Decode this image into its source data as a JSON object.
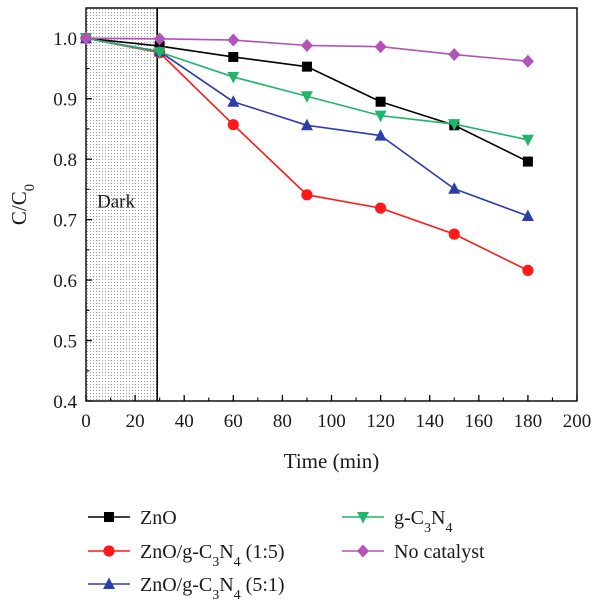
{
  "chart_data": {
    "type": "line",
    "xlabel": "Time (min)",
    "ylabel": {
      "main": "C/C",
      "sub": "0"
    },
    "xlim": [
      0,
      200
    ],
    "ylim": [
      0.4,
      1.05
    ],
    "xticks": [
      0,
      20,
      40,
      60,
      80,
      100,
      120,
      140,
      160,
      180,
      200
    ],
    "yticks": [
      0.4,
      0.5,
      0.6,
      0.7,
      0.8,
      0.9,
      1.0
    ],
    "xtick_labels": [
      "0",
      "20",
      "40",
      "60",
      "80",
      "100",
      "120",
      "140",
      "160",
      "180",
      "200"
    ],
    "ytick_labels": [
      "0.4",
      "0.5",
      "0.6",
      "0.7",
      "0.8",
      "0.9",
      "1.0"
    ],
    "grid": false,
    "legend_position": "bottom-outside",
    "annotations": [
      {
        "text": "Dark",
        "x_range": [
          0,
          29
        ],
        "fill": "dotted-hatch"
      }
    ],
    "x": [
      0,
      30,
      60,
      90,
      120,
      150,
      180
    ],
    "series": [
      {
        "name": "ZnO",
        "legend": [
          "ZnO"
        ],
        "marker": "square",
        "color": "#000000",
        "values": [
          1.0,
          0.987,
          0.969,
          0.953,
          0.895,
          0.856,
          0.796
        ]
      },
      {
        "name": "ZnO/g-C3N4 (1:5)",
        "legend": [
          "ZnO/g-C",
          "3",
          "N",
          "4",
          " (1:5)"
        ],
        "marker": "circle",
        "color": "#ff1a1a",
        "values": [
          1.0,
          0.976,
          0.857,
          0.741,
          0.719,
          0.676,
          0.616
        ]
      },
      {
        "name": "ZnO/g-C3N4 (5:1)",
        "legend": [
          "ZnO/g-C",
          "3",
          "N",
          "4",
          " (5:1)"
        ],
        "marker": "triangle-up",
        "color": "#2b3fa8",
        "values": [
          1.0,
          0.978,
          0.895,
          0.856,
          0.839,
          0.751,
          0.706
        ]
      },
      {
        "name": "g-C3N4",
        "legend": [
          "g-C",
          "3",
          "N",
          "4"
        ],
        "marker": "triangle-down",
        "color": "#1fb56a",
        "values": [
          1.0,
          0.977,
          0.936,
          0.904,
          0.872,
          0.858,
          0.832
        ]
      },
      {
        "name": "No catalyst",
        "legend": [
          "No catalyst"
        ],
        "marker": "diamond",
        "color": "#b352b8",
        "values": [
          1.0,
          0.999,
          0.997,
          0.988,
          0.986,
          0.973,
          0.962
        ]
      }
    ]
  }
}
